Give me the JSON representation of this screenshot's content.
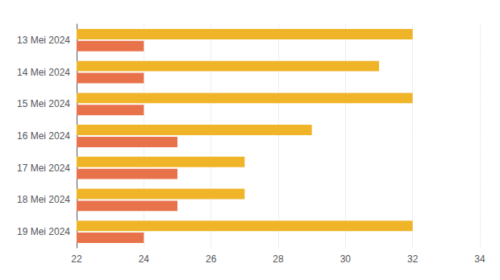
{
  "chart_data": {
    "type": "bar",
    "orientation": "horizontal",
    "categories": [
      "19 Mei 2024",
      "18 Mei 2024",
      "17 Mei 2024",
      "16 Mei 2024",
      "15 Mei 2024",
      "14 Mei 2024",
      "13 Mei 2024"
    ],
    "series": [
      {
        "color": "#E8724A",
        "values": [
          24,
          25,
          25,
          25,
          24,
          24,
          24
        ]
      },
      {
        "color": "#F0B429",
        "values": [
          32,
          27,
          27,
          29,
          32,
          31,
          32
        ]
      }
    ],
    "xlim": [
      22,
      34
    ],
    "xticks": [
      22,
      24,
      26,
      28,
      30,
      32,
      34
    ],
    "grid": true
  }
}
